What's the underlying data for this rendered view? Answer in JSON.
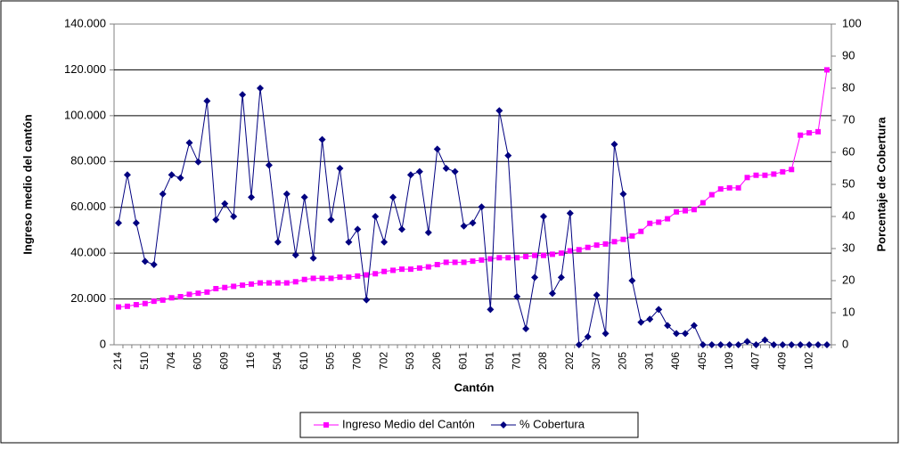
{
  "chart_data": {
    "type": "line",
    "x_label": "Cantón",
    "y_label": "Ingreso medio del cantón",
    "y2_label": "Porcentaje de Cobertura",
    "categories": [
      "214",
      null,
      null,
      "510",
      null,
      null,
      "704",
      null,
      null,
      "605",
      null,
      null,
      "609",
      null,
      null,
      "116",
      null,
      null,
      "504",
      null,
      null,
      "610",
      null,
      null,
      "505",
      null,
      null,
      "706",
      null,
      null,
      "702",
      null,
      null,
      "503",
      null,
      null,
      "206",
      null,
      null,
      "601",
      null,
      null,
      "501",
      null,
      null,
      "701",
      null,
      null,
      "208",
      null,
      null,
      "202",
      null,
      null,
      "307",
      null,
      null,
      "205",
      null,
      null,
      "301",
      null,
      null,
      "406",
      null,
      null,
      "405",
      null,
      null,
      "109",
      null,
      null,
      "407",
      null,
      null,
      "409",
      null,
      null,
      "102",
      null,
      null
    ],
    "series": [
      {
        "name": "Ingreso Medio del Cantón",
        "color": "#ff00ff",
        "marker": "square",
        "values": [
          16500,
          16800,
          17500,
          18000,
          19000,
          19500,
          20500,
          21000,
          22000,
          22500,
          23000,
          24500,
          25000,
          25500,
          26000,
          26500,
          27000,
          27000,
          27000,
          27000,
          27500,
          28500,
          29000,
          29000,
          29000,
          29500,
          29500,
          30000,
          30500,
          31000,
          32000,
          32500,
          33000,
          33000,
          33500,
          34000,
          35000,
          36000,
          36000,
          36000,
          36500,
          37000,
          37500,
          38000,
          38000,
          38000,
          38500,
          39000,
          39000,
          39500,
          40000,
          41000,
          41500,
          42500,
          43500,
          44000,
          45000,
          46000,
          47500,
          49500,
          53000,
          53500,
          55000,
          58000,
          58500,
          59000,
          62000,
          65500,
          68000,
          68500,
          68500,
          73000,
          74000,
          74000,
          74500,
          75500,
          76500,
          91500,
          92500,
          93000,
          120000
        ]
      },
      {
        "name": "% Cobertura",
        "color": "#000080",
        "marker": "diamond",
        "axis": "y2",
        "values": [
          38,
          53,
          38,
          26,
          25,
          47,
          53,
          52,
          63,
          57,
          76,
          39,
          44,
          40,
          78,
          46,
          80,
          56,
          32,
          47,
          28,
          46,
          27,
          64,
          39,
          55,
          32,
          36,
          14,
          40,
          32,
          46,
          36,
          53,
          54,
          35,
          61,
          55,
          54,
          37,
          38,
          43,
          11,
          73,
          59,
          15,
          5,
          21,
          40,
          16,
          21,
          41,
          0,
          2.5,
          15.5,
          3.5,
          62.5,
          47,
          20,
          7,
          8,
          11,
          6,
          3.5,
          3.5,
          6,
          0,
          0,
          0,
          0,
          0,
          1,
          0,
          1.5,
          0,
          0,
          0,
          0,
          0,
          0,
          0
        ]
      }
    ],
    "ylim": [
      0,
      140000
    ],
    "yticks": [
      0,
      {
        "value": 20000,
        "label": "20.000"
      },
      {
        "value": 40000,
        "label": "40.000"
      },
      {
        "value": 60000,
        "label": "60.000"
      },
      {
        "value": 80000,
        "label": "80.000"
      },
      {
        "value": 100000,
        "label": "100.000"
      },
      {
        "value": 120000,
        "label": "120.000"
      },
      {
        "value": 140000,
        "label": "140.000"
      }
    ],
    "y2lim": [
      0,
      100
    ],
    "y2ticks": [
      0,
      10,
      20,
      30,
      40,
      50,
      60,
      70,
      80,
      90,
      100
    ],
    "grid": true,
    "legend": "bottom"
  }
}
